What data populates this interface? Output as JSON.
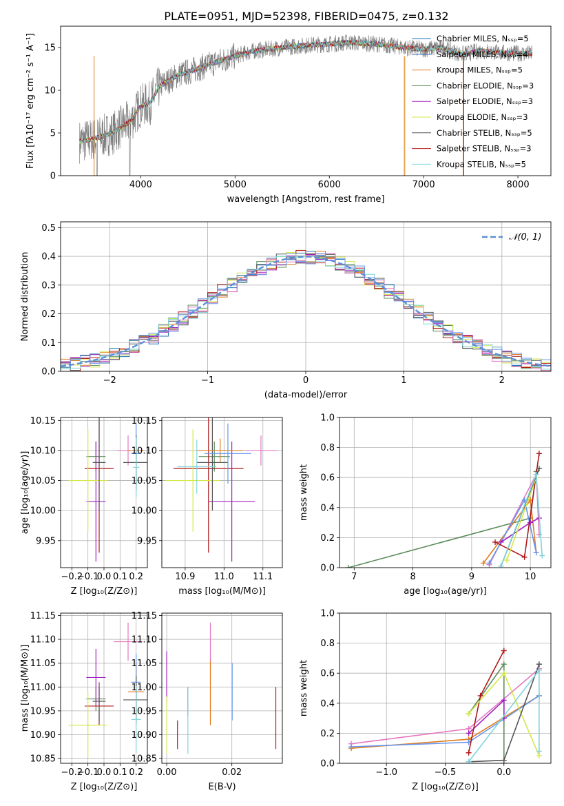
{
  "title": "PLATE=0951, MJD=52398, FIBERID=0475, z=0.132",
  "colors": {
    "Chabrier MILES": "#1f77b4",
    "Salpeter MILES": "#1f5faa",
    "Kroupa MILES": "#e07b1c",
    "Chabrier ELODIE": "#5b8c5a",
    "Salpeter ELODIE": "#a020c0",
    "Kroupa ELODIE": "#d4e84a",
    "Chabrier STELIB": "#555555",
    "Salpeter STELIB": "#b01818",
    "Kroupa STELIB": "#7fd4dc",
    "Chabrier MILES B": "#6495ed",
    "pink": "#e377c2",
    "data": "#808080"
  },
  "chart_data": [
    {
      "id": "spectrum",
      "type": "line",
      "xlabel": "wavelength [Angstrom, rest frame]",
      "ylabel": "Flux [fλ10⁻¹⁷ erg cm⁻² s⁻¹ A⁻¹]",
      "xlim": [
        3150,
        8350
      ],
      "ylim": [
        0,
        17.5
      ],
      "xticks": [
        4000,
        5000,
        6000,
        7000,
        8000
      ],
      "yticks": [
        0,
        5,
        10,
        15
      ],
      "legend": [
        "Chabrier MILES, Nₛₛₚ=5",
        "Salpeter MILES, Nₛₛₚ=4",
        "Kroupa MILES, Nₛₛₚ=5",
        "Chabrier ELODIE, Nₛₛₚ=3",
        "Salpeter ELODIE, Nₛₛₚ=3",
        "Kroupa ELODIE, Nₛₛₚ=3",
        "Chabrier STELIB, Nₛₛₚ=5",
        "Salpeter STELIB, Nₛₛₚ=3",
        "Kroupa STELIB, Nₛₛₚ=5"
      ],
      "legend_colors": [
        "#1f77b4",
        "#1f5faa",
        "#e07b1c",
        "#5b8c5a",
        "#a020c0",
        "#d4e84a",
        "#555555",
        "#b01818",
        "#7fd4dc"
      ],
      "legend_loc": "right",
      "model_knots": [
        [
          3350,
          4.0
        ],
        [
          3500,
          4.3
        ],
        [
          3700,
          5.0
        ],
        [
          3900,
          6.5
        ],
        [
          4000,
          8.2
        ],
        [
          4100,
          8.5
        ],
        [
          4200,
          10.5
        ],
        [
          4400,
          11.8
        ],
        [
          4600,
          12.5
        ],
        [
          4800,
          13.3
        ],
        [
          5000,
          14.0
        ],
        [
          5200,
          14.6
        ],
        [
          5500,
          15.0
        ],
        [
          5800,
          15.3
        ],
        [
          6000,
          15.4
        ],
        [
          6200,
          15.6
        ],
        [
          6500,
          15.4
        ],
        [
          6800,
          15.0
        ],
        [
          7000,
          14.8
        ],
        [
          7200,
          15.0
        ],
        [
          7400,
          14.2
        ],
        [
          7600,
          14.6
        ],
        [
          7800,
          14.4
        ],
        [
          8000,
          14.3
        ],
        [
          8150,
          14.3
        ]
      ],
      "x": [
        3350,
        8150
      ]
    },
    {
      "id": "residual-hist",
      "type": "bar",
      "xlabel": "(data-model)/error",
      "ylabel": "Normed distribution",
      "xlim": [
        -2.5,
        2.5
      ],
      "ylim": [
        0,
        0.52
      ],
      "xticks": [
        -2,
        -1,
        0,
        1,
        2
      ],
      "yticks": [
        0.0,
        0.1,
        0.2,
        0.3,
        0.4,
        0.5
      ],
      "legend": [
        "𝒩(0, 1)"
      ],
      "legend_loc": "upper right",
      "bin_width": 0.1
    },
    {
      "id": "age-vs-Z",
      "type": "scatter",
      "xlabel": "Z [log₁₀(Z/Z⊙)]",
      "ylabel": "age  [log₁₀(age/yr)]",
      "xlim": [
        -0.27,
        0.27
      ],
      "ylim": [
        9.905,
        10.155
      ],
      "xticks": [
        -0.2,
        -0.1,
        0.0,
        0.1,
        0.2
      ],
      "yticks": [
        9.95,
        10.0,
        10.05,
        10.1,
        10.15
      ],
      "points": [
        {
          "x": -0.05,
          "y": 10.09,
          "ex": 0.06,
          "ey": 0.025,
          "color": "#5b8c5a"
        },
        {
          "x": -0.03,
          "y": 10.07,
          "ex": 0.09,
          "ey": 0.14,
          "color": "#b01818"
        },
        {
          "x": -0.05,
          "y": 10.015,
          "ex": 0.06,
          "ey": 0.1,
          "color": "#a020c0"
        },
        {
          "x": -0.1,
          "y": 10.05,
          "ex": 0.12,
          "ey": 0.085,
          "color": "#d4e84a"
        },
        {
          "x": -0.03,
          "y": 10.08,
          "ex": 0.04,
          "ey": 0.08,
          "color": "#555555"
        },
        {
          "x": 0.15,
          "y": 10.1,
          "ex": 0.07,
          "ey": 0.025,
          "color": "#e377c2"
        },
        {
          "x": 0.2,
          "y": 10.1,
          "ex": 0.05,
          "ey": 0.02,
          "color": "#e07b1c"
        },
        {
          "x": 0.2,
          "y": 10.095,
          "ex": 0.03,
          "ey": 0.05,
          "color": "#6495ed"
        },
        {
          "x": 0.2,
          "y": 10.08,
          "ex": 0.08,
          "ey": 0.045,
          "color": "#555555"
        },
        {
          "x": 0.2,
          "y": 10.072,
          "ex": 0.02,
          "ey": 0.05,
          "color": "#7fd4dc"
        }
      ]
    },
    {
      "id": "age-vs-mass",
      "type": "scatter",
      "xlabel": "mass [log₁₀(M/M⊙)]",
      "ylabel": "",
      "xlim": [
        10.84,
        11.15
      ],
      "ylim": [
        9.905,
        10.155
      ],
      "xticks": [
        10.9,
        11.0,
        11.1
      ],
      "yticks": [
        9.95,
        10.0,
        10.05,
        10.1,
        10.15
      ],
      "points": [
        {
          "x": 10.975,
          "y": 10.09,
          "ex": 0.04,
          "ey": 0.025,
          "color": "#5b8c5a"
        },
        {
          "x": 10.96,
          "y": 10.07,
          "ex": 0.09,
          "ey": 0.14,
          "color": "#b01818"
        },
        {
          "x": 11.02,
          "y": 10.015,
          "ex": 0.06,
          "ey": 0.1,
          "color": "#a020c0"
        },
        {
          "x": 10.92,
          "y": 10.05,
          "ex": 0.07,
          "ey": 0.085,
          "color": "#d4e84a"
        },
        {
          "x": 10.97,
          "y": 10.08,
          "ex": 0.04,
          "ey": 0.08,
          "color": "#555555"
        },
        {
          "x": 11.095,
          "y": 10.1,
          "ex": 0.04,
          "ey": 0.025,
          "color": "#e377c2"
        },
        {
          "x": 10.99,
          "y": 10.1,
          "ex": 0.06,
          "ey": 0.02,
          "color": "#e07b1c"
        },
        {
          "x": 11.01,
          "y": 10.095,
          "ex": 0.06,
          "ey": 0.05,
          "color": "#6495ed"
        },
        {
          "x": 10.93,
          "y": 10.073,
          "ex": 0.05,
          "ey": 0.045,
          "color": "#7fd4dc"
        }
      ]
    },
    {
      "id": "massweight-vs-age",
      "type": "line",
      "xlabel": "age  [log₁₀(age/yr)]",
      "ylabel": "mass weight",
      "xlim": [
        6.75,
        10.35
      ],
      "ylim": [
        0,
        1
      ],
      "xticks": [
        7,
        8,
        9,
        10
      ],
      "yticks": [
        0.0,
        0.2,
        0.4,
        0.6,
        0.8,
        1.0
      ],
      "series": [
        {
          "color": "#5b8c5a",
          "points": [
            [
              6.9,
              0.0
            ],
            [
              10.0,
              0.33
            ],
            [
              10.1,
              0.64
            ]
          ]
        },
        {
          "color": "#e377c2",
          "points": [
            [
              9.3,
              0.02
            ],
            [
              10.1,
              0.62
            ],
            [
              10.15,
              0.22
            ]
          ]
        },
        {
          "color": "#e07b1c",
          "points": [
            [
              9.2,
              0.03
            ],
            [
              10.0,
              0.45
            ],
            [
              10.1,
              0.1
            ]
          ]
        },
        {
          "color": "#6495ed",
          "points": [
            [
              9.3,
              0.03
            ],
            [
              9.9,
              0.45
            ],
            [
              10.1,
              0.1
            ]
          ]
        },
        {
          "color": "#a020c0",
          "points": [
            [
              9.5,
              0.17
            ],
            [
              10.0,
              0.3
            ],
            [
              10.15,
              0.33
            ]
          ]
        },
        {
          "color": "#b01818",
          "points": [
            [
              9.4,
              0.17
            ],
            [
              9.9,
              0.07
            ],
            [
              10.15,
              0.76
            ]
          ]
        },
        {
          "color": "#d4e84a",
          "points": [
            [
              9.6,
              0.05
            ],
            [
              10.1,
              0.6
            ]
          ]
        },
        {
          "color": "#555555",
          "points": [
            [
              9.5,
              0.01
            ],
            [
              10.15,
              0.66
            ]
          ]
        },
        {
          "color": "#7fd4dc",
          "points": [
            [
              9.5,
              0.01
            ],
            [
              10.1,
              0.62
            ],
            [
              10.2,
              0.08
            ]
          ]
        }
      ]
    },
    {
      "id": "mass-vs-Z",
      "type": "scatter",
      "xlabel": "Z [log₁₀(Z/Z⊙)]",
      "ylabel": "mass [log₁₀(M/M⊙)]",
      "xlim": [
        -0.27,
        0.27
      ],
      "ylim": [
        10.84,
        11.155
      ],
      "xticks": [
        -0.2,
        -0.1,
        0.0,
        0.1,
        0.2
      ],
      "yticks": [
        10.85,
        10.9,
        10.95,
        11.0,
        11.05,
        11.1,
        11.15
      ],
      "points": [
        {
          "x": -0.05,
          "y": 10.975,
          "ex": 0.06,
          "ey": 0.025,
          "color": "#5b8c5a"
        },
        {
          "x": -0.03,
          "y": 10.96,
          "ex": 0.09,
          "ey": 0.04,
          "color": "#b01818"
        },
        {
          "x": -0.05,
          "y": 11.02,
          "ex": 0.06,
          "ey": 0.06,
          "color": "#a020c0"
        },
        {
          "x": -0.1,
          "y": 10.92,
          "ex": 0.12,
          "ey": 0.07,
          "color": "#d4e84a"
        },
        {
          "x": -0.03,
          "y": 10.97,
          "ex": 0.04,
          "ey": 0.04,
          "color": "#555555"
        },
        {
          "x": 0.15,
          "y": 11.095,
          "ex": 0.09,
          "ey": 0.04,
          "color": "#e377c2"
        },
        {
          "x": 0.2,
          "y": 10.99,
          "ex": 0.05,
          "ey": 0.06,
          "color": "#e07b1c"
        },
        {
          "x": 0.2,
          "y": 11.01,
          "ex": 0.03,
          "ey": 0.06,
          "color": "#6495ed"
        },
        {
          "x": 0.2,
          "y": 10.973,
          "ex": 0.08,
          "ey": 0.05,
          "color": "#555555"
        },
        {
          "x": 0.2,
          "y": 10.932,
          "ex": 0.03,
          "ey": 0.07,
          "color": "#7fd4dc"
        }
      ]
    },
    {
      "id": "mass-vs-EBV",
      "type": "scatter",
      "xlabel": "E(B-V)",
      "ylabel": "",
      "xlim": [
        -0.0015,
        0.0355
      ],
      "ylim": [
        10.84,
        11.155
      ],
      "xticks": [
        0.0,
        0.02
      ],
      "yticks": [
        10.85,
        10.9,
        10.95,
        11.0,
        11.05,
        11.1,
        11.15
      ],
      "points": [
        {
          "x": 0.0,
          "y": 11.02,
          "ex": 0,
          "ey": 0.055,
          "color": "#a020c0"
        },
        {
          "x": 0.0,
          "y": 10.92,
          "ex": 0,
          "ey": 0.06,
          "color": "#d4e84a"
        },
        {
          "x": 0.0033,
          "y": 10.9,
          "ex": 0,
          "ey": 0.03,
          "color": "#b01818"
        },
        {
          "x": 0.0065,
          "y": 10.97,
          "ex": 0,
          "ey": 0.03,
          "color": "#555555"
        },
        {
          "x": 0.0065,
          "y": 10.93,
          "ex": 0,
          "ey": 0.07,
          "color": "#7fd4dc"
        },
        {
          "x": 0.0134,
          "y": 10.99,
          "ex": 0,
          "ey": 0.07,
          "color": "#e07b1c"
        },
        {
          "x": 0.0134,
          "y": 11.095,
          "ex": 0,
          "ey": 0.04,
          "color": "#e377c2"
        },
        {
          "x": 0.0201,
          "y": 10.99,
          "ex": 0,
          "ey": 0.06,
          "color": "#6495ed"
        },
        {
          "x": 0.0335,
          "y": 10.935,
          "ex": 0,
          "ey": 0.065,
          "color": "#b01818"
        }
      ]
    },
    {
      "id": "massweight-vs-Z",
      "type": "line",
      "xlabel": "Z [log₁₀(Z/Z⊙)]",
      "ylabel": "mass weight",
      "xlim": [
        -1.4,
        0.4
      ],
      "ylim": [
        0,
        1
      ],
      "xticks": [
        -1.0,
        -0.5,
        0.0
      ],
      "yticks": [
        0.0,
        0.2,
        0.4,
        0.6,
        0.8,
        1.0
      ],
      "series": [
        {
          "color": "#e377c2",
          "points": [
            [
              -1.3,
              0.13
            ],
            [
              -0.3,
              0.23
            ],
            [
              0.3,
              0.63
            ]
          ]
        },
        {
          "color": "#e07b1c",
          "points": [
            [
              -1.3,
              0.1
            ],
            [
              -0.3,
              0.16
            ],
            [
              0.3,
              0.45
            ]
          ]
        },
        {
          "color": "#6495ed",
          "points": [
            [
              -1.3,
              0.11
            ],
            [
              -0.3,
              0.14
            ],
            [
              0.3,
              0.45
            ]
          ]
        },
        {
          "color": "#5b8c5a",
          "points": [
            [
              -0.3,
              0.33
            ],
            [
              0.0,
              0.66
            ],
            [
              0.0,
              0.0
            ]
          ]
        },
        {
          "color": "#a020c0",
          "points": [
            [
              -0.3,
              0.2
            ],
            [
              0.0,
              0.42
            ],
            [
              0.0,
              0.3
            ]
          ]
        },
        {
          "color": "#b01818",
          "points": [
            [
              -0.3,
              0.07
            ],
            [
              -0.2,
              0.45
            ],
            [
              0.0,
              0.75
            ]
          ]
        },
        {
          "color": "#d4e84a",
          "points": [
            [
              -0.3,
              0.33
            ],
            [
              0.0,
              0.6
            ],
            [
              0.3,
              0.05
            ]
          ]
        },
        {
          "color": "#555555",
          "points": [
            [
              -0.3,
              0.01
            ],
            [
              0.0,
              0.02
            ],
            [
              0.3,
              0.66
            ]
          ]
        },
        {
          "color": "#7fd4dc",
          "points": [
            [
              -0.3,
              0.01
            ],
            [
              0.3,
              0.62
            ],
            [
              0.3,
              0.08
            ]
          ]
        }
      ]
    }
  ]
}
